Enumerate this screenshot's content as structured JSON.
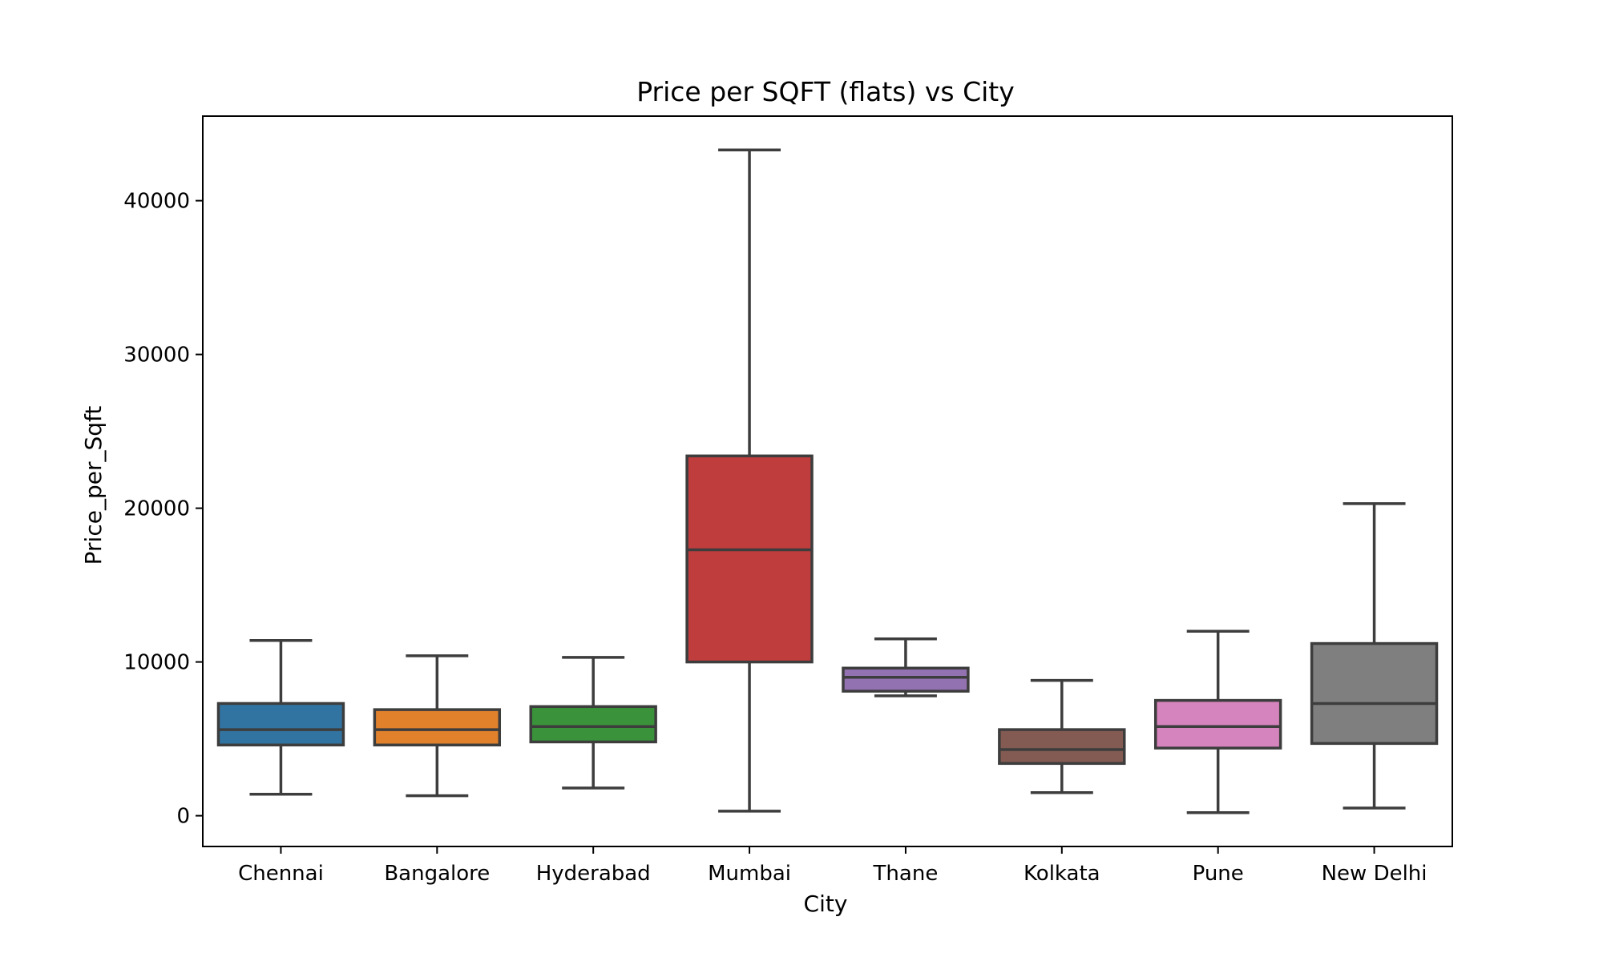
{
  "chart_data": {
    "type": "box",
    "title": "Price per SQFT (flats) vs City",
    "xlabel": "City",
    "ylabel": "Price_per_Sqft",
    "ylim": [
      -2000,
      45500
    ],
    "yticks": [
      0,
      10000,
      20000,
      30000,
      40000
    ],
    "grid": false,
    "legend": "none",
    "categories": [
      "Chennai",
      "Bangalore",
      "Hyderabad",
      "Mumbai",
      "Thane",
      "Kolkata",
      "Pune",
      "New Delhi"
    ],
    "boxes": [
      {
        "category": "Chennai",
        "whisker_low": 1400,
        "q1": 4600,
        "median": 5600,
        "q3": 7300,
        "whisker_high": 11400,
        "color": "#3274a1"
      },
      {
        "category": "Bangalore",
        "whisker_low": 1300,
        "q1": 4600,
        "median": 5600,
        "q3": 6900,
        "whisker_high": 10400,
        "color": "#e1812c"
      },
      {
        "category": "Hyderabad",
        "whisker_low": 1800,
        "q1": 4800,
        "median": 5800,
        "q3": 7100,
        "whisker_high": 10300,
        "color": "#3a923a"
      },
      {
        "category": "Mumbai",
        "whisker_low": 300,
        "q1": 10000,
        "median": 17300,
        "q3": 23400,
        "whisker_high": 43300,
        "color": "#c03d3e"
      },
      {
        "category": "Thane",
        "whisker_low": 7800,
        "q1": 8100,
        "median": 9000,
        "q3": 9600,
        "whisker_high": 11500,
        "color": "#9372b2"
      },
      {
        "category": "Kolkata",
        "whisker_low": 1500,
        "q1": 3400,
        "median": 4300,
        "q3": 5600,
        "whisker_high": 8800,
        "color": "#845b53"
      },
      {
        "category": "Pune",
        "whisker_low": 200,
        "q1": 4400,
        "median": 5800,
        "q3": 7500,
        "whisker_high": 12000,
        "color": "#d684bd"
      },
      {
        "category": "New Delhi",
        "whisker_low": 500,
        "q1": 4700,
        "median": 7300,
        "q3": 11200,
        "whisker_high": 20300,
        "color": "#7f7f7f"
      }
    ],
    "line_color": "#3d3d3d"
  }
}
